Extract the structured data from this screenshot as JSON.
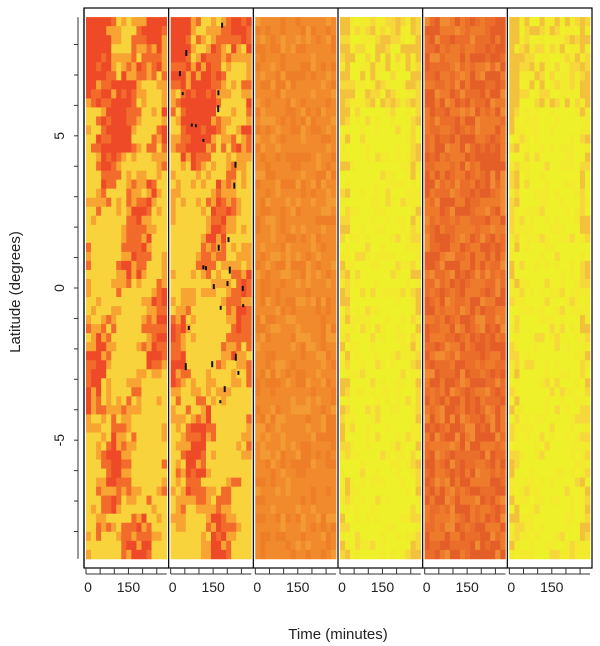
{
  "chart_data": {
    "type": "heatmap",
    "title": "",
    "xlabel": "Time (minutes)",
    "ylabel": "Latitude (degrees)",
    "ylim": [
      -9.2,
      9.2
    ],
    "data_lat_range": [
      -8.9,
      8.9
    ],
    "y_ticks": [
      -5,
      0,
      5
    ],
    "y_tick_labels": [
      "-5",
      "0",
      "5"
    ],
    "panel_time_range": [
      0,
      285
    ],
    "x_ticks": [
      0,
      150
    ],
    "x_tick_labels": [
      "0",
      "150"
    ],
    "x_minor_ticks": [
      50,
      100,
      200,
      250
    ],
    "panels": [
      {
        "palette": [
          "#f9d33c",
          "#f7a432",
          "#f26b2b",
          "#ef4a28"
        ],
        "texture": "patchy"
      },
      {
        "palette": [
          "#f9d33c",
          "#f7a432",
          "#f26b2b",
          "#ef4a28"
        ],
        "texture": "patchy-missing"
      },
      {
        "palette": [
          "#f49a34",
          "#f08a2c",
          "#ee7f28",
          "#f7b03a"
        ],
        "texture": "smooth"
      },
      {
        "palette": [
          "#eef02a",
          "#f2ea2c",
          "#f6d83a",
          "#f2c23c"
        ],
        "texture": "smooth-light"
      },
      {
        "palette": [
          "#ee7a2c",
          "#ea6d2a",
          "#e45f28",
          "#f08a33"
        ],
        "texture": "noisy"
      },
      {
        "palette": [
          "#eef02a",
          "#f2ea2c",
          "#f6d83a",
          "#f2c23c"
        ],
        "texture": "smooth-light"
      }
    ],
    "grid": false,
    "legend": "none"
  }
}
